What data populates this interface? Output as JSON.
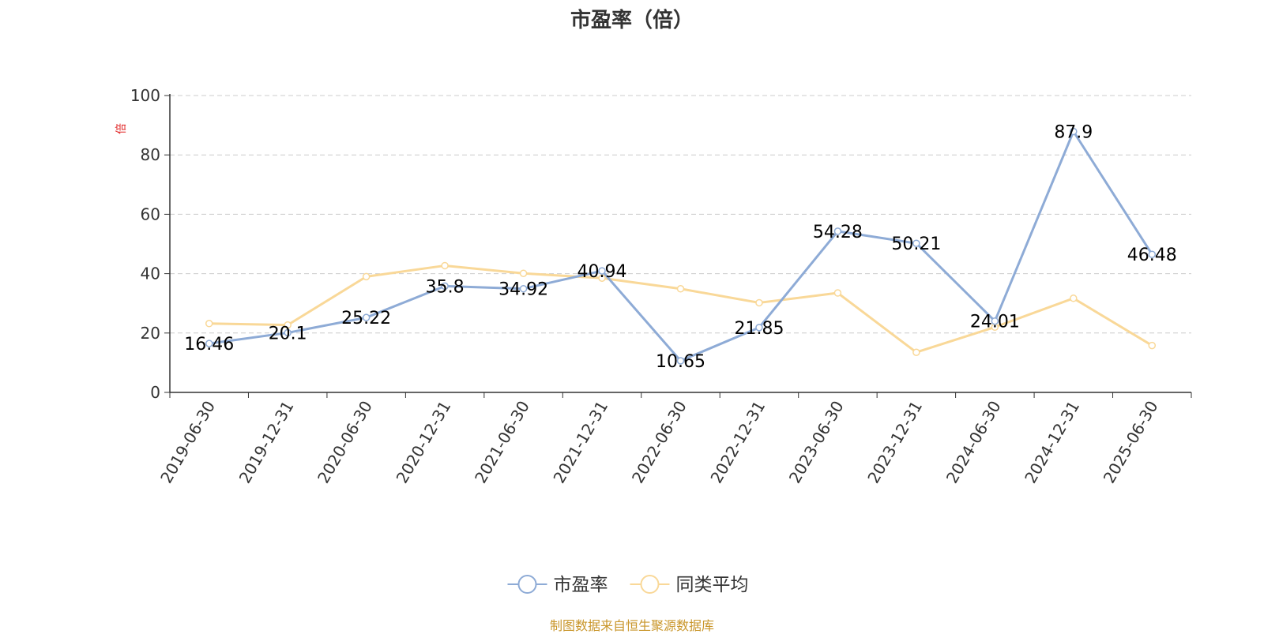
{
  "chart_data": {
    "type": "line",
    "title": "市盈率（倍）",
    "ylabel": "倍",
    "ylim": [
      0,
      100
    ],
    "yticks": [
      0,
      20,
      40,
      60,
      80,
      100
    ],
    "grid": true,
    "legend_position": "bottom",
    "categories": [
      "2019-06-30",
      "2019-12-31",
      "2020-06-30",
      "2020-12-31",
      "2021-06-30",
      "2021-12-31",
      "2022-06-30",
      "2022-12-31",
      "2023-06-30",
      "2023-12-31",
      "2024-06-30",
      "2024-12-31",
      "2025-06-30"
    ],
    "series": [
      {
        "name": "市盈率",
        "color": "#8eabd6",
        "values": [
          16.46,
          20.1,
          25.22,
          35.8,
          34.92,
          40.94,
          10.65,
          21.85,
          54.28,
          50.21,
          24.01,
          87.9,
          46.48
        ],
        "data_labels": [
          "16.46",
          "20.1",
          "25.22",
          "35.8",
          "34.92",
          "40.94",
          "10.65",
          "21.85",
          "54.28",
          "50.21",
          "24.01",
          "87.9",
          "46.48"
        ]
      },
      {
        "name": "同类平均",
        "color": "#f9d898",
        "values": [
          23.2,
          22.7,
          39.0,
          42.7,
          40.1,
          38.5,
          34.9,
          30.2,
          33.5,
          13.5,
          22.0,
          31.7,
          15.8
        ]
      }
    ]
  },
  "footer": "制图数据来自恒生聚源数据库",
  "colors": {
    "axis": "#333333",
    "grid": "#cccccc",
    "ylabel": "#e02020",
    "footer": "#c9962b"
  }
}
